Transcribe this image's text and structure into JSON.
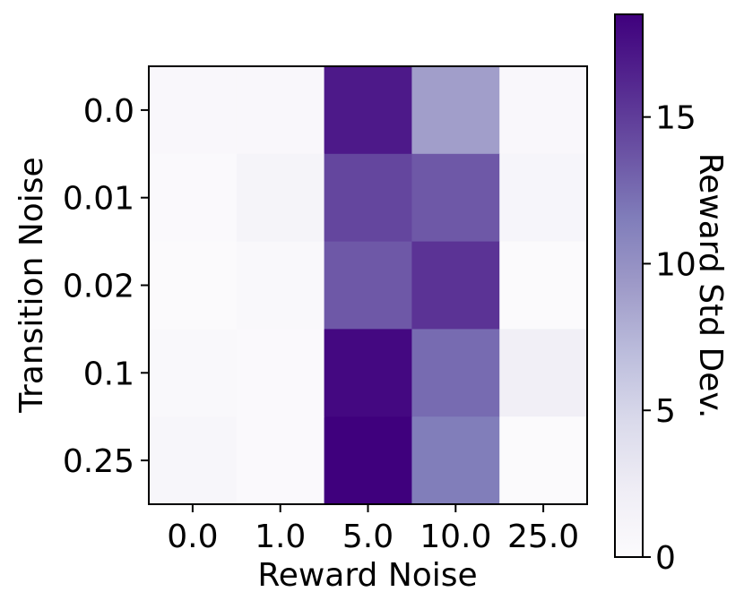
{
  "chart_data": {
    "type": "heatmap",
    "xlabel": "Reward Noise",
    "ylabel": "Transition Noise",
    "x_categories": [
      "0.0",
      "1.0",
      "5.0",
      "10.0",
      "25.0"
    ],
    "y_categories": [
      "0.0",
      "0.01",
      "0.02",
      "0.1",
      "0.25"
    ],
    "values": [
      [
        0.6,
        0.6,
        17.0,
        9.0,
        0.6
      ],
      [
        0.3,
        1.2,
        14.5,
        13.5,
        1.0
      ],
      [
        0.2,
        0.5,
        13.5,
        15.5,
        0.2
      ],
      [
        0.5,
        0.3,
        18.0,
        12.5,
        2.0
      ],
      [
        0.9,
        0.3,
        18.5,
        11.5,
        0.2
      ]
    ],
    "colormap": "Purples",
    "colorbar": {
      "label": "Reward Std Dev.",
      "range": [
        0,
        18.5
      ],
      "ticks": [
        "0",
        "5",
        "10",
        "15"
      ]
    },
    "colors": {
      "low": "#fcfbfd",
      "high": "#3f007d"
    }
  }
}
